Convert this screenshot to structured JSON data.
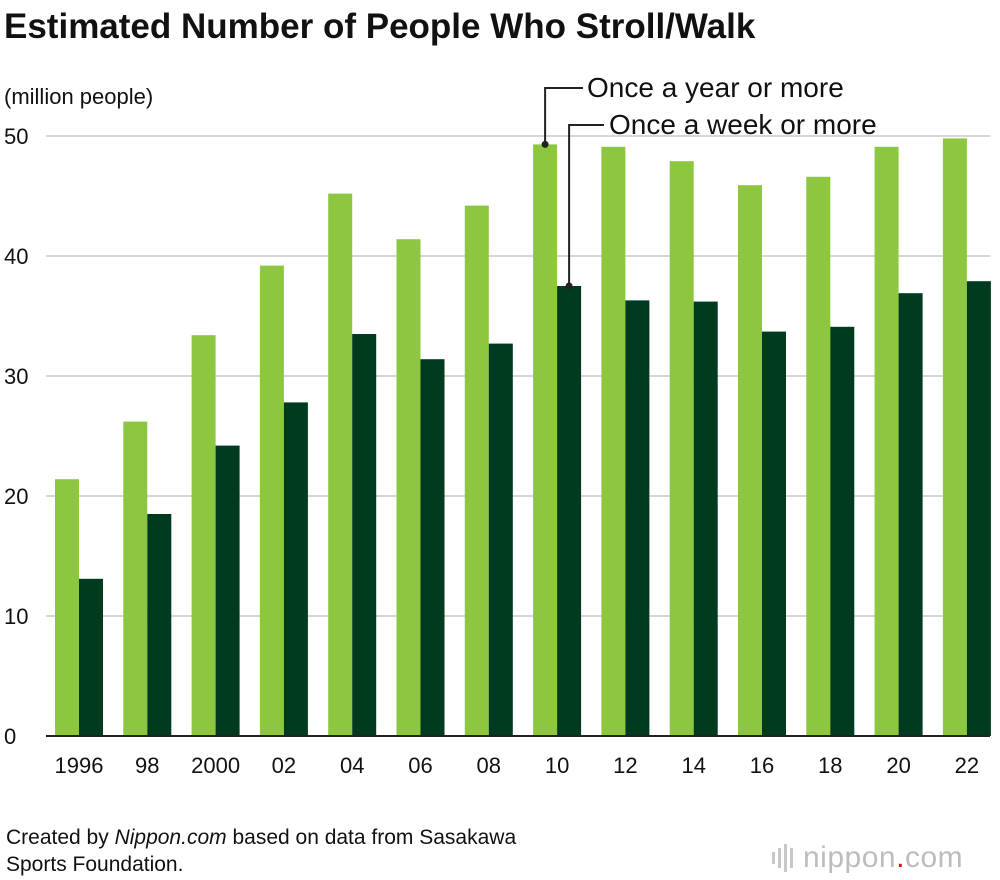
{
  "chart_data": {
    "type": "bar",
    "title": "Estimated Number of People Who Stroll/Walk",
    "ylabel": "(million people)",
    "xlabel": "",
    "ylim": [
      0,
      50
    ],
    "yticks": [
      0,
      10,
      20,
      30,
      40,
      50
    ],
    "grid": true,
    "categories": [
      "1996",
      "98",
      "2000",
      "02",
      "04",
      "06",
      "08",
      "10",
      "12",
      "14",
      "16",
      "18",
      "20",
      "22"
    ],
    "series": [
      {
        "name": "Once a year or more",
        "color": "#8dc63f",
        "values": [
          21.4,
          26.2,
          33.4,
          39.2,
          45.2,
          41.4,
          44.2,
          49.3,
          49.1,
          47.9,
          45.9,
          46.6,
          49.1,
          49.8
        ]
      },
      {
        "name": "Once a week or more",
        "color": "#003a1f",
        "values": [
          13.1,
          18.5,
          24.2,
          27.8,
          33.5,
          31.4,
          32.7,
          37.5,
          36.3,
          36.2,
          33.7,
          34.1,
          36.9,
          37.9
        ]
      }
    ],
    "legend_callout_category": "10"
  },
  "footer": {
    "prefix": "Created by ",
    "source_site": "Nippon.com",
    "rest_line1": " based on data from Sasakawa",
    "line2": "Sports Foundation."
  },
  "logo": {
    "word": "nippon",
    "dot": ".",
    "suffix": "com"
  },
  "colors": {
    "grid": "#c8c8c8",
    "axis": "#222222",
    "text": "#111111"
  }
}
